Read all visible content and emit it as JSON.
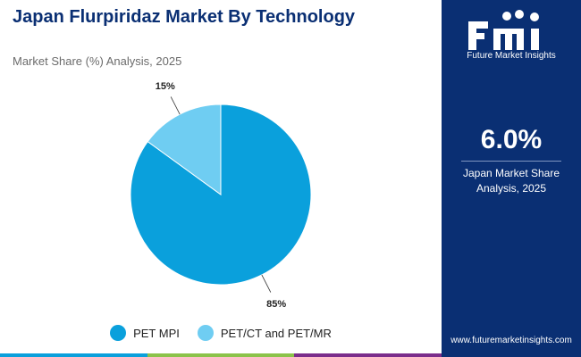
{
  "header": {
    "title": "Japan Flurpiridaz Market By Technology",
    "subtitle": "Market Share (%) Analysis, 2025"
  },
  "chart_data": {
    "type": "pie",
    "categories": [
      "PET MPI",
      "PET/CT and PET/MR"
    ],
    "values": [
      85,
      15
    ],
    "data_labels": [
      "85%",
      "15%"
    ],
    "colors": [
      "#0aa0dc",
      "#6fcdf2"
    ],
    "legend_position": "bottom"
  },
  "sidebar": {
    "brand_name": "Future Market Insights",
    "stat_value": "6.0%",
    "stat_label": "Japan Market Share Analysis, 2025",
    "url": "www.futuremarketinsights.com"
  },
  "colors": {
    "navy": "#0a2f73",
    "bar": [
      "#0aa0dc",
      "#8bc34a",
      "#7b2d8b"
    ]
  }
}
